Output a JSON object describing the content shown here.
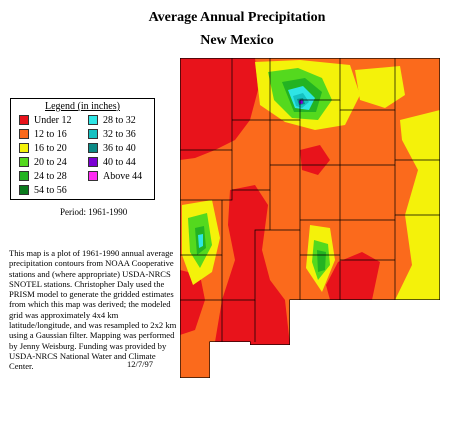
{
  "title": "Average Annual Precipitation",
  "subtitle": "New Mexico",
  "legend": {
    "title": "Legend (in inches)",
    "items": [
      {
        "label": "Under 12",
        "color": "#e8131b"
      },
      {
        "label": "12 to 16",
        "color": "#fb6a1c"
      },
      {
        "label": "16 to 20",
        "color": "#f4f20a"
      },
      {
        "label": "20 to 24",
        "color": "#54d91e"
      },
      {
        "label": "24 to 28",
        "color": "#23b322"
      },
      {
        "label": "54 to 56",
        "color": "#0a7a1c"
      },
      {
        "label": "28 to 32",
        "color": "#2ee5e5"
      },
      {
        "label": "32 to 36",
        "color": "#15c1c1"
      },
      {
        "label": "36 to 40",
        "color": "#0b8a86"
      },
      {
        "label": "40 to 44",
        "color": "#7a00d2"
      },
      {
        "label": "Above 44",
        "color": "#ff2bf2"
      }
    ]
  },
  "period": "Period: 1961-1990",
  "description": "This map is a plot of 1961-1990 annual average precipitation contours from NOAA Cooperative stations and (where appropriate) USDA-NRCS SNOTEL stations. Christopher Daly used the PRISM model to generate the gridded estimates from which this map was derived; the modeled grid was approximately 4x4 km latitude/longitude, and was resampled to 2x2 km using a Gaussian filter. Mapping was performed by Jenny Weisburg. Funding was provided by USDA-NRCS National Water and Climate Center.",
  "date": "12/7/97"
}
